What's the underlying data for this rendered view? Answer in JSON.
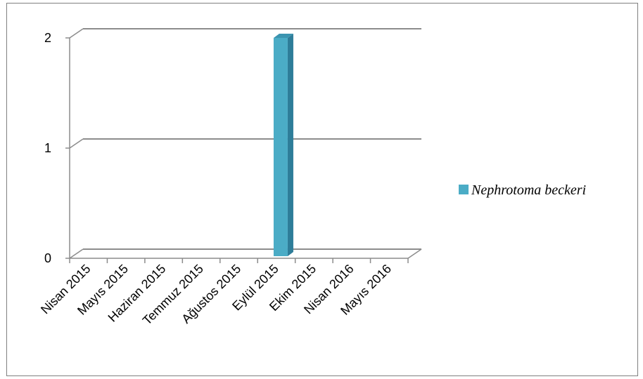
{
  "chart_data": {
    "type": "bar",
    "title": "",
    "xlabel": "",
    "ylabel": "",
    "categories": [
      "Nisan 2015",
      "Mayıs 2015",
      "Haziran 2015",
      "Temmuz 2015",
      "Ağustos 2015",
      "Eylül 2015",
      "Ekim 2015",
      "Nisan 2016",
      "Mayıs 2016"
    ],
    "series": [
      {
        "name": "Nephrotoma beckeri",
        "values": [
          0,
          0,
          0,
          0,
          0,
          2,
          0,
          0,
          0
        ],
        "color": "#4BACC6"
      }
    ],
    "ylim": [
      0,
      2
    ],
    "yticks": [
      "0",
      "1",
      "2"
    ],
    "grid": true,
    "legend_position": "right",
    "style": "3d-column"
  }
}
